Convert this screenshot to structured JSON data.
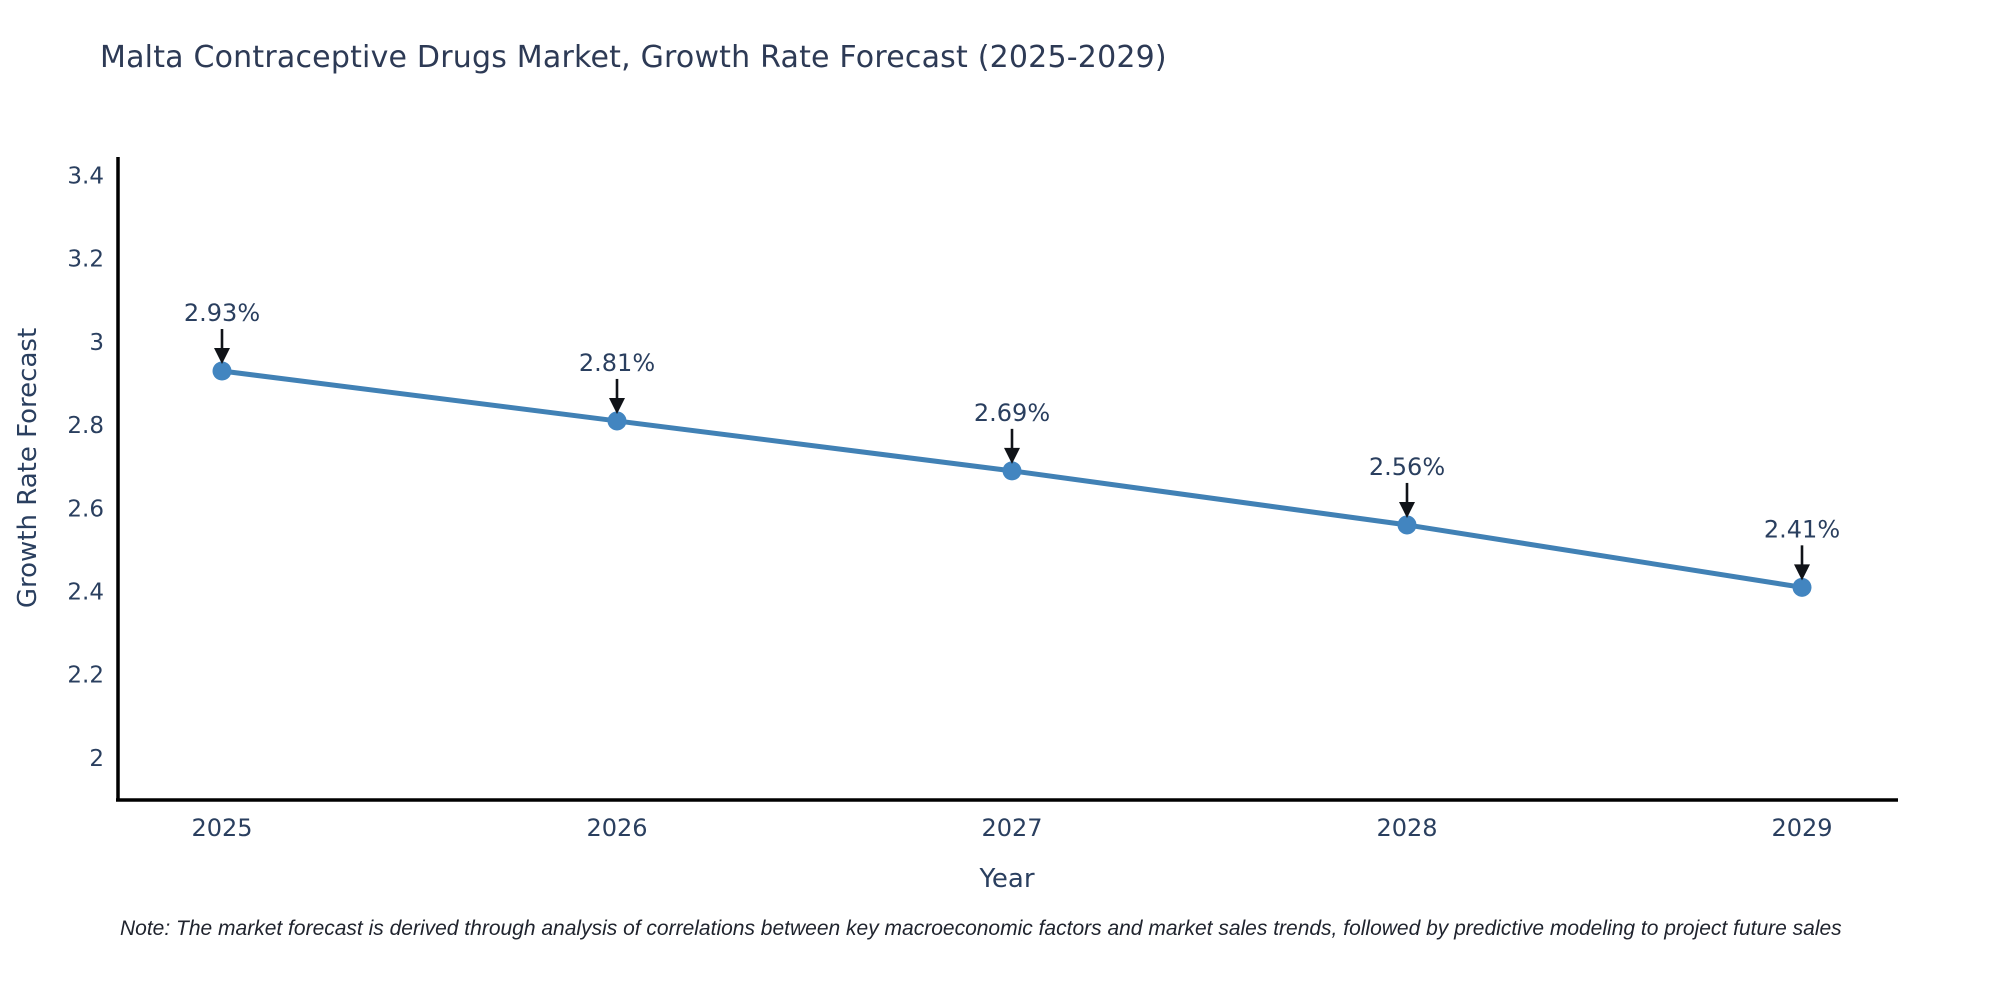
{
  "chart": {
    "title": "Malta Contraceptive Drugs Market, Growth Rate Forecast (2025-2029)",
    "xlabel": "Year",
    "ylabel": "Growth Rate Forecast",
    "note": "Note: The market forecast is derived through analysis of correlations between key macroeconomic factors and market sales trends, followed by predictive modeling to project future sales",
    "colors": {
      "line": "#4181b5",
      "marker": "#4285c0",
      "axis": "#000000",
      "tick_text": "#2a3f5f",
      "title_text": "#2d3a55",
      "annotation_text": "#2a3f5f",
      "arrow": "#101318",
      "background": "#ffffff"
    }
  },
  "chart_data": {
    "type": "line",
    "title": "Malta Contraceptive Drugs Market, Growth Rate Forecast (2025-2029)",
    "xlabel": "Year",
    "ylabel": "Growth Rate Forecast",
    "categories": [
      "2025",
      "2026",
      "2027",
      "2028",
      "2029"
    ],
    "x": [
      2025,
      2026,
      2027,
      2028,
      2029
    ],
    "series": [
      {
        "name": "Growth Rate Forecast",
        "values": [
          2.93,
          2.81,
          2.69,
          2.56,
          2.41
        ]
      }
    ],
    "point_labels": [
      "2.93%",
      "2.81%",
      "2.69%",
      "2.56%",
      "2.41%"
    ],
    "yticks": [
      2,
      2.2,
      2.4,
      2.6,
      2.8,
      3,
      3.2,
      3.4
    ],
    "ytick_labels": [
      "2",
      "2.2",
      "2.4",
      "2.6",
      "2.8",
      "3",
      "3.2",
      "3.4"
    ],
    "ylim": [
      1.9,
      3.45
    ],
    "grid": false,
    "legend": false,
    "annotations_have_arrows": true
  }
}
